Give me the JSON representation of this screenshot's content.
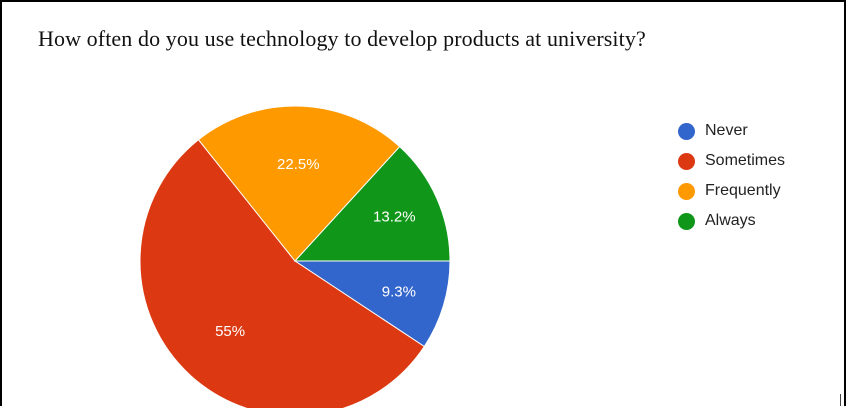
{
  "chart_data": {
    "type": "pie",
    "title": "How often do you use technology to develop products at university?",
    "categories": [
      "Never",
      "Sometimes",
      "Frequently",
      "Always"
    ],
    "values": [
      9.3,
      55,
      22.5,
      13.2
    ],
    "value_labels": [
      "9.3%",
      "55%",
      "22.5%",
      "13.2%"
    ],
    "colors": [
      "#3366cc",
      "#dc3912",
      "#ff9900",
      "#109618"
    ],
    "legend": {
      "position": "right",
      "entries": [
        "Never",
        "Sometimes",
        "Frequently",
        "Always"
      ]
    }
  }
}
